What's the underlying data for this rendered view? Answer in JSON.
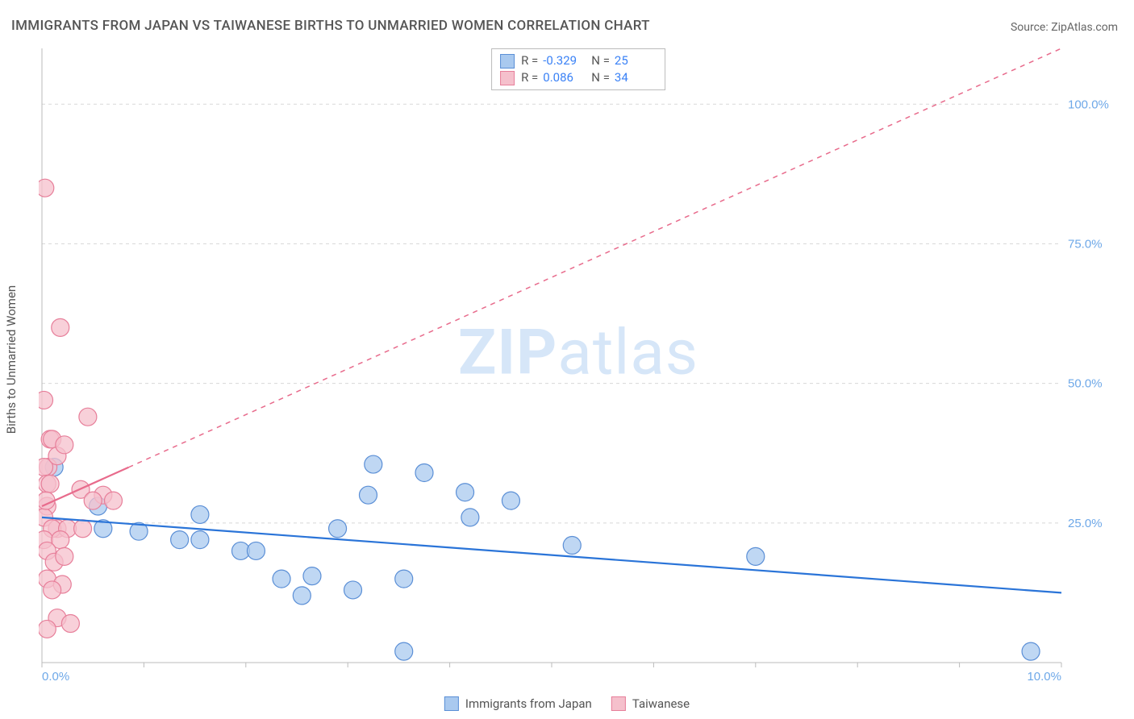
{
  "title": "IMMIGRANTS FROM JAPAN VS TAIWANESE BIRTHS TO UNMARRIED WOMEN CORRELATION CHART",
  "source": "Source: ZipAtlas.com",
  "y_label": "Births to Unmarried Women",
  "watermark_a": "ZIP",
  "watermark_b": "atlas",
  "chart": {
    "type": "scatter-with-regression",
    "background_color": "#ffffff",
    "grid_color": "#d8d8d8",
    "grid_dash": "4,4",
    "axis_color": "#bbbbbb",
    "x_axis": {
      "min": 0.0,
      "max": 10.0,
      "ticks": [
        0.0,
        10.0
      ],
      "tick_format_suffix": "%",
      "tick_format_decimals": 1,
      "minor_tick_step": 1.0,
      "label_color": "#6ea8e8"
    },
    "y_axis": {
      "min": 0.0,
      "max": 110.0,
      "ticks": [
        25.0,
        50.0,
        75.0,
        100.0
      ],
      "tick_format_suffix": "%",
      "tick_format_decimals": 1,
      "label_color": "#6ea8e8"
    },
    "series": [
      {
        "id": "japan",
        "label": "Immigrants from Japan",
        "color_fill": "#a9c9ef",
        "color_stroke": "#5b8fd6",
        "marker_radius": 11,
        "marker_opacity": 0.75,
        "regression": {
          "color": "#2a74d8",
          "width": 2.2,
          "style": "solid",
          "y_at_xmin": 26.0,
          "y_at_xmax": 12.5,
          "extrapolate_dash": false
        },
        "stats": {
          "R": "-0.329",
          "N": "25"
        },
        "points": [
          {
            "x": 0.12,
            "y": 35.0
          },
          {
            "x": 0.55,
            "y": 28.0
          },
          {
            "x": 0.6,
            "y": 24.0
          },
          {
            "x": 0.95,
            "y": 23.5
          },
          {
            "x": 1.35,
            "y": 22.0
          },
          {
            "x": 1.55,
            "y": 26.5
          },
          {
            "x": 1.55,
            "y": 22.0
          },
          {
            "x": 1.95,
            "y": 20.0
          },
          {
            "x": 2.1,
            "y": 20.0
          },
          {
            "x": 2.35,
            "y": 15.0
          },
          {
            "x": 2.55,
            "y": 12.0
          },
          {
            "x": 2.9,
            "y": 24.0
          },
          {
            "x": 2.65,
            "y": 15.5
          },
          {
            "x": 3.05,
            "y": 13.0
          },
          {
            "x": 3.2,
            "y": 30.0
          },
          {
            "x": 3.25,
            "y": 35.5
          },
          {
            "x": 3.55,
            "y": 15.0
          },
          {
            "x": 3.55,
            "y": 2.0
          },
          {
            "x": 3.75,
            "y": 34.0
          },
          {
            "x": 4.15,
            "y": 30.5
          },
          {
            "x": 4.6,
            "y": 29.0
          },
          {
            "x": 4.2,
            "y": 26.0
          },
          {
            "x": 5.2,
            "y": 21.0
          },
          {
            "x": 7.0,
            "y": 19.0
          },
          {
            "x": 9.7,
            "y": 2.0
          }
        ]
      },
      {
        "id": "taiwan",
        "label": "Taiwanese",
        "color_fill": "#f5c0cc",
        "color_stroke": "#e77f9a",
        "marker_radius": 11,
        "marker_opacity": 0.75,
        "regression": {
          "color": "#e86b8c",
          "width": 2.2,
          "style": "solid",
          "y_at_xmin": 28.0,
          "y_at_xmax": 110.0,
          "solid_until_x": 0.85,
          "extrapolate_dash": true,
          "dash_pattern": "6,6"
        },
        "stats": {
          "R": "0.086",
          "N": "34"
        },
        "points": [
          {
            "x": 0.03,
            "y": 85.0
          },
          {
            "x": 0.18,
            "y": 60.0
          },
          {
            "x": 0.02,
            "y": 47.0
          },
          {
            "x": 0.45,
            "y": 44.0
          },
          {
            "x": 0.08,
            "y": 40.0
          },
          {
            "x": 0.1,
            "y": 40.0
          },
          {
            "x": 0.06,
            "y": 35.0
          },
          {
            "x": 0.02,
            "y": 35.0
          },
          {
            "x": 0.15,
            "y": 37.0
          },
          {
            "x": 0.22,
            "y": 39.0
          },
          {
            "x": 0.05,
            "y": 32.0
          },
          {
            "x": 0.08,
            "y": 32.0
          },
          {
            "x": 0.38,
            "y": 31.0
          },
          {
            "x": 0.6,
            "y": 30.0
          },
          {
            "x": 0.5,
            "y": 29.0
          },
          {
            "x": 0.7,
            "y": 29.0
          },
          {
            "x": 0.05,
            "y": 28.0
          },
          {
            "x": 0.02,
            "y": 26.0
          },
          {
            "x": 0.15,
            "y": 24.0
          },
          {
            "x": 0.1,
            "y": 24.0
          },
          {
            "x": 0.25,
            "y": 24.0
          },
          {
            "x": 0.4,
            "y": 24.0
          },
          {
            "x": 0.02,
            "y": 22.0
          },
          {
            "x": 0.18,
            "y": 22.0
          },
          {
            "x": 0.05,
            "y": 20.0
          },
          {
            "x": 0.12,
            "y": 18.0
          },
          {
            "x": 0.22,
            "y": 19.0
          },
          {
            "x": 0.05,
            "y": 15.0
          },
          {
            "x": 0.2,
            "y": 14.0
          },
          {
            "x": 0.1,
            "y": 13.0
          },
          {
            "x": 0.15,
            "y": 8.0
          },
          {
            "x": 0.28,
            "y": 7.0
          },
          {
            "x": 0.05,
            "y": 6.0
          },
          {
            "x": 0.04,
            "y": 29.0
          }
        ]
      }
    ]
  },
  "stat_box": {
    "rows": [
      {
        "swatch_fill": "#a9c9ef",
        "swatch_stroke": "#5b8fd6",
        "r_label": "R =",
        "r_value": "-0.329",
        "n_label": "N =",
        "n_value": "25"
      },
      {
        "swatch_fill": "#f5c0cc",
        "swatch_stroke": "#e77f9a",
        "r_label": "R =",
        "r_value": "0.086",
        "n_label": "N =",
        "n_value": "34"
      }
    ]
  },
  "bottom_legend": [
    {
      "swatch_fill": "#a9c9ef",
      "swatch_stroke": "#5b8fd6",
      "label": "Immigrants from Japan"
    },
    {
      "swatch_fill": "#f5c0cc",
      "swatch_stroke": "#e77f9a",
      "label": "Taiwanese"
    }
  ]
}
